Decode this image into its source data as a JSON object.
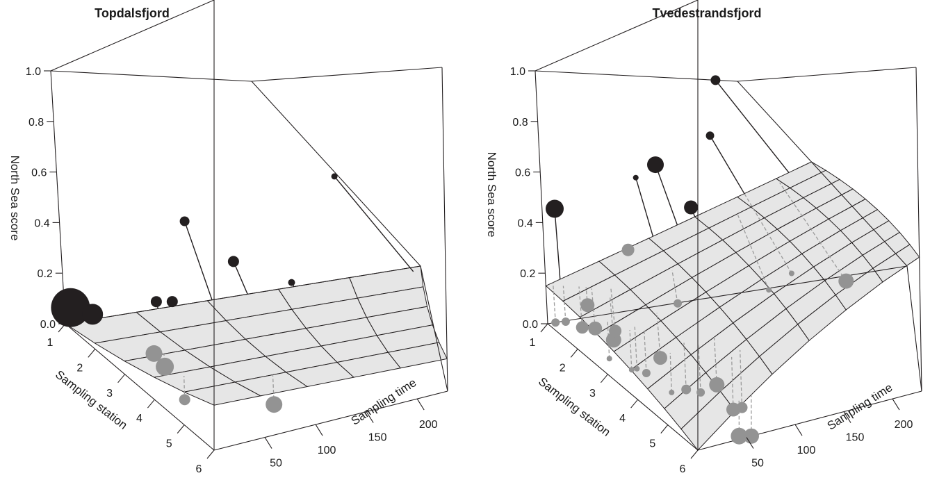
{
  "colors": {
    "above": "#231f20",
    "below": "#939393",
    "plane": "#e6e6e6"
  },
  "chart_data": [
    {
      "type": "scatter",
      "title": "Topdalsfjord",
      "xlabel": "Sampling time",
      "ylabel": "Sampling station",
      "zlabel": "North Sea score",
      "xlim": [
        0,
        230
      ],
      "ylim": [
        1,
        6
      ],
      "zlim": [
        0,
        1
      ],
      "xticks": [
        "50",
        "100",
        "150",
        "200"
      ],
      "yticks": [
        "1",
        "2",
        "3",
        "4",
        "5",
        "6"
      ],
      "zticks": [
        "0.0",
        "0.2",
        "0.4",
        "0.6",
        "0.8",
        "1.0"
      ],
      "plane_rows": 5,
      "plane_cols": 5,
      "plane": {
        "c": 0.0,
        "a": 0.0,
        "b": 0.02
      },
      "points": [
        {
          "x": 4,
          "y": 1.0,
          "z": 0.06,
          "size": 28
        },
        {
          "x": 18,
          "y": 1.0,
          "z": 0.02,
          "size": 15
        },
        {
          "x": 95,
          "y": 1.0,
          "z": 0.35,
          "size": 7
        },
        {
          "x": 118,
          "y": 1.0,
          "z": 0.15,
          "size": 8
        },
        {
          "x": 225,
          "y": 1.2,
          "z": 0.5,
          "size": 4.5
        },
        {
          "x": 148,
          "y": 1.0,
          "z": 0.02,
          "size": 5
        },
        {
          "x": 60,
          "y": 1.0,
          "z": 0.03,
          "size": 8
        },
        {
          "x": 70,
          "y": 1.0,
          "z": 0.02,
          "size": 8
        },
        {
          "x": 30,
          "y": 2.6,
          "z": 0.01,
          "size": 12
        },
        {
          "x": 30,
          "y": 3.0,
          "z": 0.0,
          "size": 13
        },
        {
          "x": 80,
          "y": 5.0,
          "z": 0.0,
          "size": 12
        },
        {
          "x": 20,
          "y": 4.2,
          "z": 0.0,
          "size": 8
        }
      ]
    },
    {
      "type": "scatter",
      "title": "Tvedestrandsfjord",
      "xlabel": "Sampling time",
      "ylabel": "Sampling station",
      "zlabel": "North Sea score",
      "xlim": [
        0,
        230
      ],
      "ylim": [
        1,
        6
      ],
      "zlim": [
        0,
        1
      ],
      "xticks": [
        "50",
        "100",
        "150",
        "200"
      ],
      "yticks": [
        "1",
        "2",
        "3",
        "4",
        "5",
        "6"
      ],
      "zticks": [
        "0.0",
        "0.2",
        "0.4",
        "0.6",
        "0.8",
        "1.0"
      ],
      "plane_rows": 9,
      "plane_cols": 6,
      "plane": {
        "c": 0.15,
        "a": 0.0018,
        "b": -0.03
      },
      "points": [
        {
          "x": 10,
          "y": 1.0,
          "z": 0.45,
          "size": 13
        },
        {
          "x": 18,
          "y": 1.5,
          "z": 0.1,
          "size": 10
        },
        {
          "x": 60,
          "y": 1.0,
          "z": 0.25,
          "size": 9
        },
        {
          "x": 80,
          "y": 1.0,
          "z": 0.55,
          "size": 4
        },
        {
          "x": 100,
          "y": 1.0,
          "z": 0.6,
          "size": 12
        },
        {
          "x": 115,
          "y": 1.0,
          "z": 0.4,
          "size": 10
        },
        {
          "x": 160,
          "y": 1.0,
          "z": 0.72,
          "size": 6
        },
        {
          "x": 205,
          "y": 1.0,
          "z": 1.0,
          "size": 7
        },
        {
          "x": 70,
          "y": 2.2,
          "z": 0.12,
          "size": 6
        },
        {
          "x": 5,
          "y": 1.0,
          "z": 0.0,
          "size": 6
        },
        {
          "x": 8,
          "y": 1.2,
          "z": 0.02,
          "size": 6
        },
        {
          "x": 15,
          "y": 1.4,
          "z": 0.01,
          "size": 9
        },
        {
          "x": 20,
          "y": 1.6,
          "z": 0.02,
          "size": 10
        },
        {
          "x": 25,
          "y": 2.0,
          "z": 0.01,
          "size": 11
        },
        {
          "x": 30,
          "y": 1.8,
          "z": 0.02,
          "size": 9
        },
        {
          "x": 12,
          "y": 2.5,
          "z": 0.0,
          "size": 4
        },
        {
          "x": 18,
          "y": 3.0,
          "z": 0.0,
          "size": 4
        },
        {
          "x": 22,
          "y": 3.0,
          "z": 0.0,
          "size": 4
        },
        {
          "x": 25,
          "y": 3.2,
          "z": 0.0,
          "size": 6
        },
        {
          "x": 40,
          "y": 3.0,
          "z": 0.02,
          "size": 10
        },
        {
          "x": 28,
          "y": 4.0,
          "z": 0.0,
          "size": 4
        },
        {
          "x": 40,
          "y": 4.0,
          "z": 0.0,
          "size": 7
        },
        {
          "x": 48,
          "y": 4.2,
          "z": 0.0,
          "size": 6
        },
        {
          "x": 60,
          "y": 4.3,
          "z": 0.02,
          "size": 11
        },
        {
          "x": 60,
          "y": 5.0,
          "z": 0.0,
          "size": 10
        },
        {
          "x": 68,
          "y": 5.0,
          "z": 0.0,
          "size": 8
        },
        {
          "x": 140,
          "y": 1.6,
          "z": 0.06,
          "size": 4
        },
        {
          "x": 160,
          "y": 1.0,
          "z": 0.05,
          "size": 4
        },
        {
          "x": 190,
          "y": 1.2,
          "z": 0.0,
          "size": 11
        },
        {
          "x": 45,
          "y": 5.9,
          "z": 0.0,
          "size": 12
        },
        {
          "x": 55,
          "y": 6.0,
          "z": 0.0,
          "size": 11
        }
      ]
    }
  ]
}
